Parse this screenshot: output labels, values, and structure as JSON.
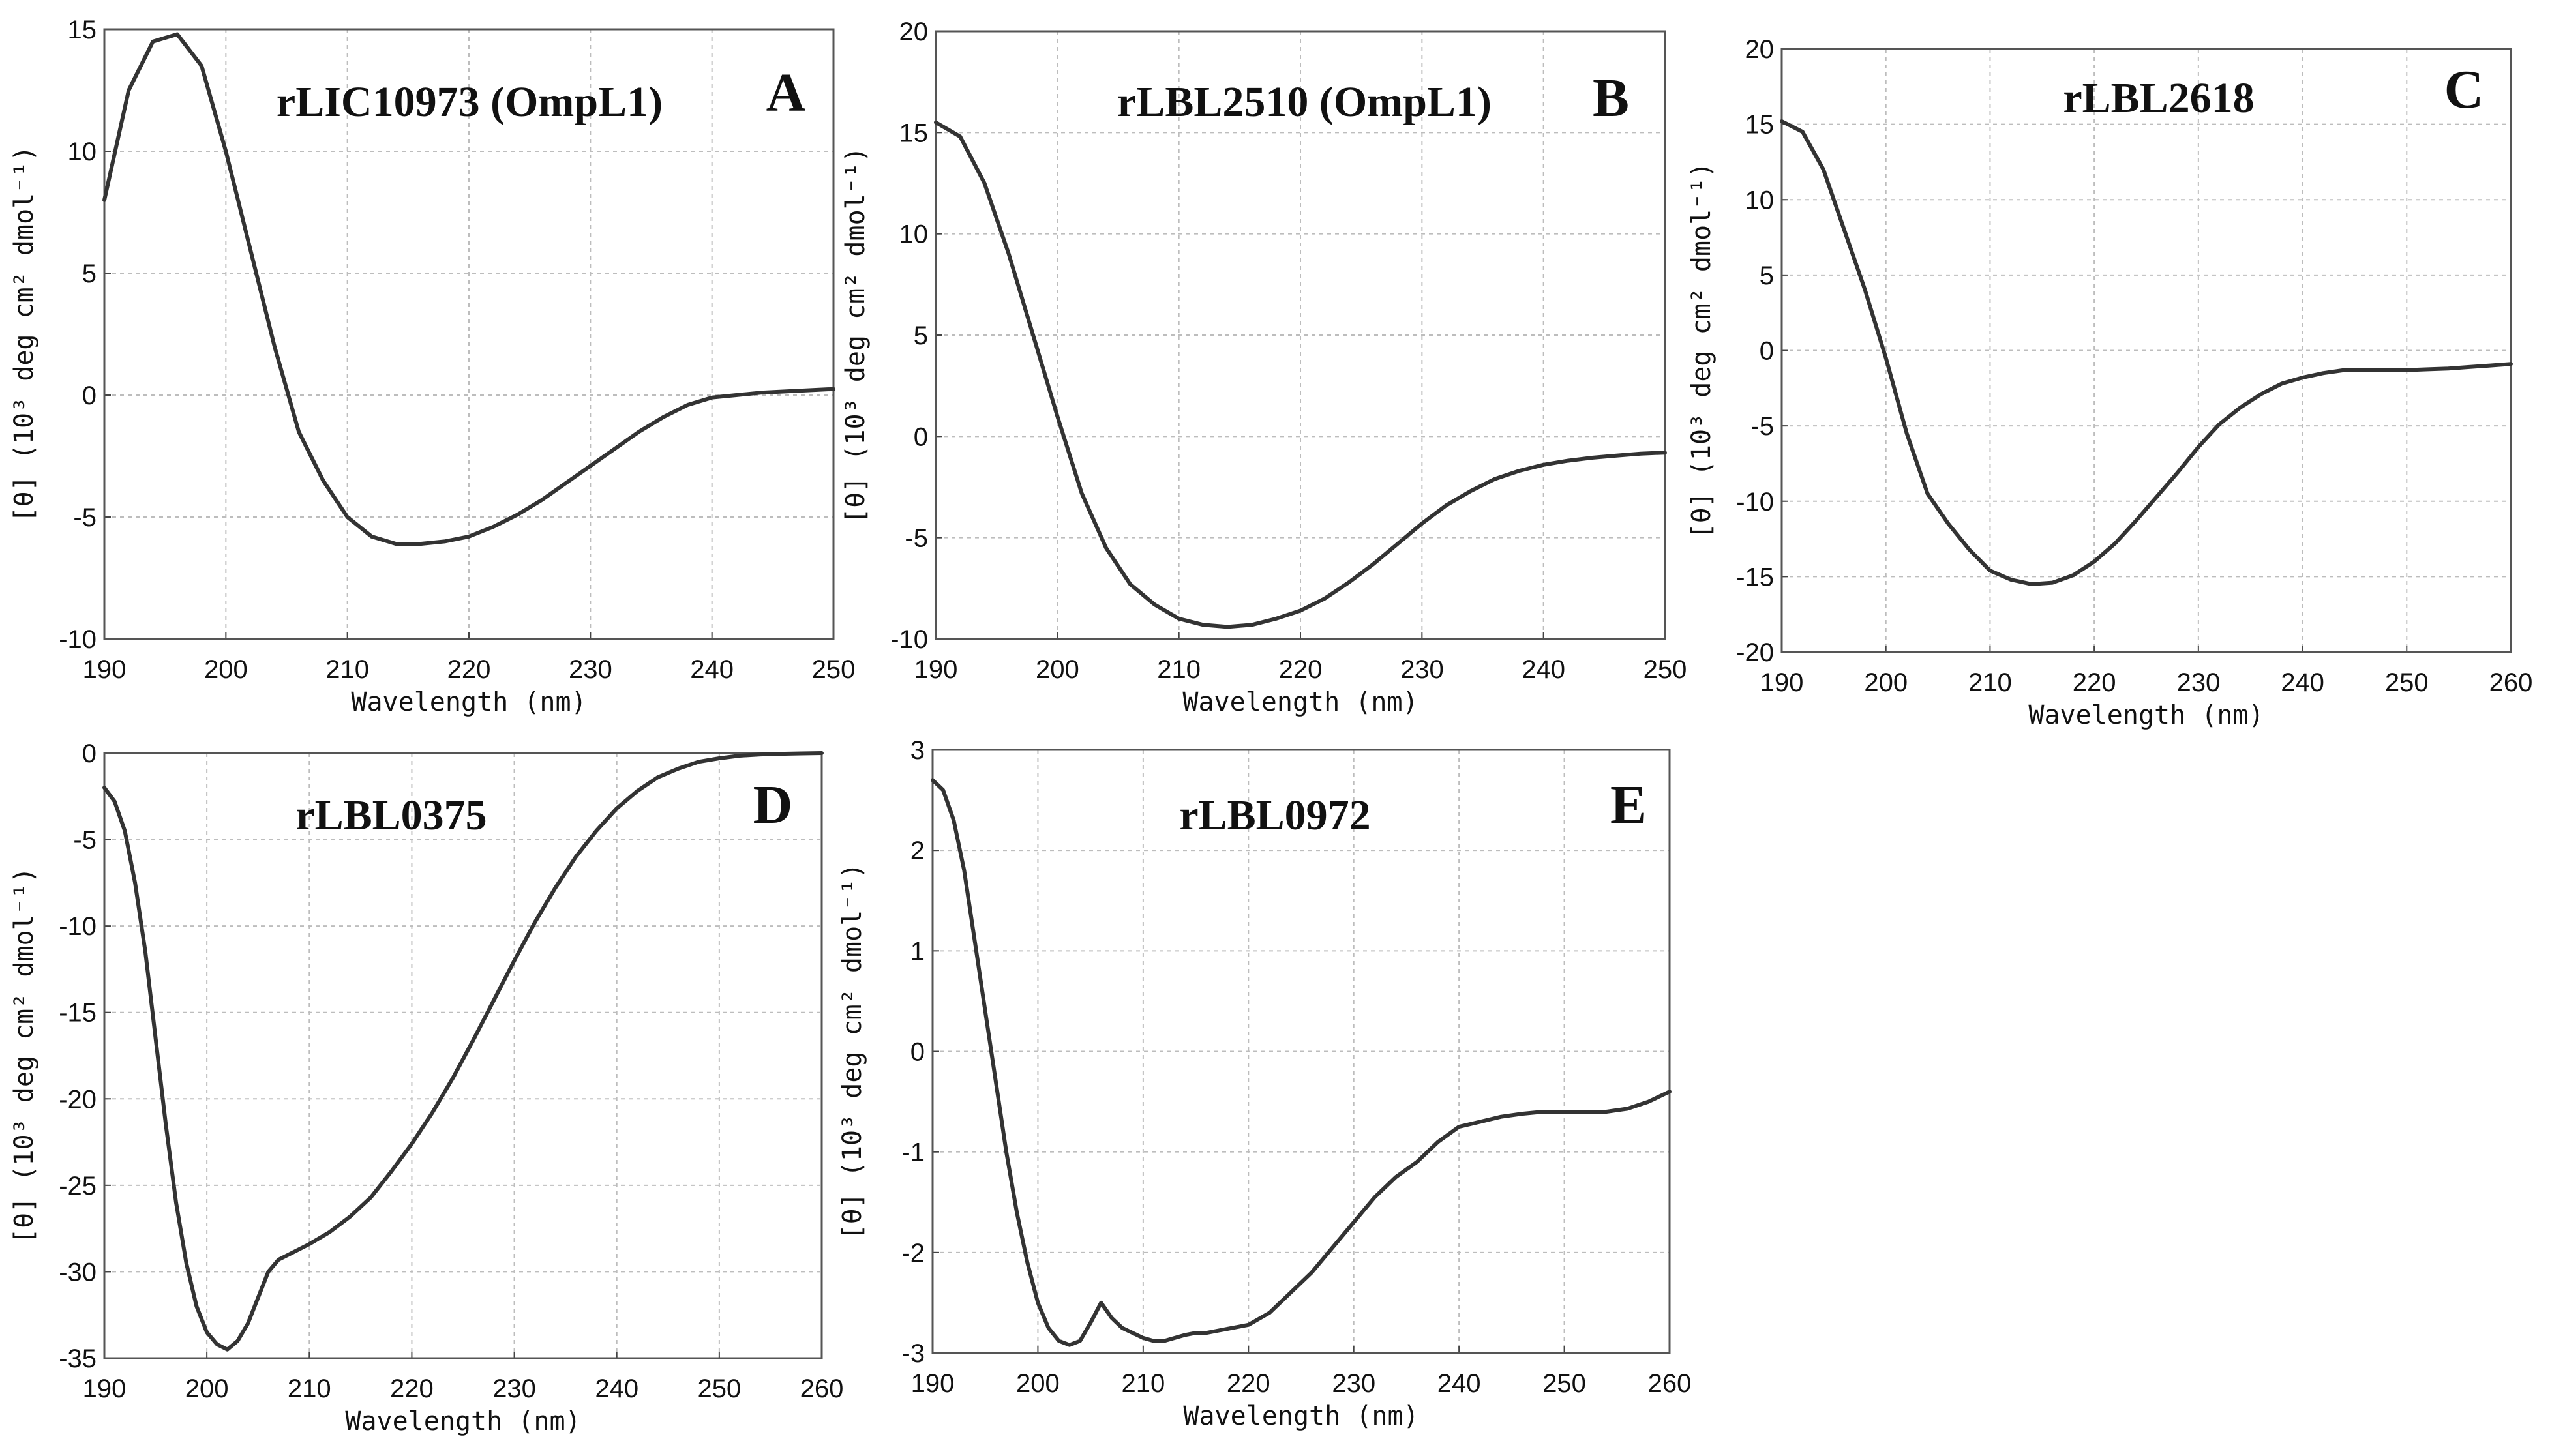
{
  "chart_data": [
    {
      "type": "line",
      "panel_letter": "A",
      "title": "rLIC10973 (OmpL1)",
      "xlabel": "Wavelength (nm)",
      "ylabel": "[θ] (10³ deg cm² dmol⁻¹)",
      "xlim": [
        190,
        250
      ],
      "ylim": [
        -10,
        15
      ],
      "xticks": [
        190,
        200,
        210,
        220,
        230,
        240,
        250
      ],
      "yticks": [
        -10,
        -5,
        0,
        5,
        10,
        15
      ],
      "grid": true,
      "series": [
        {
          "name": "rLIC10973 (OmpL1)",
          "x": [
            190,
            192,
            194,
            196,
            198,
            200,
            202,
            204,
            206,
            208,
            210,
            212,
            214,
            216,
            218,
            220,
            222,
            224,
            226,
            228,
            230,
            232,
            234,
            236,
            238,
            240,
            242,
            244,
            246,
            248,
            250
          ],
          "y": [
            8,
            12.5,
            14.5,
            14.8,
            13.5,
            10,
            6,
            2,
            -1.5,
            -3.5,
            -5,
            -5.8,
            -6.1,
            -6.1,
            -6,
            -5.8,
            -5.4,
            -4.9,
            -4.3,
            -3.6,
            -2.9,
            -2.2,
            -1.5,
            -0.9,
            -0.4,
            -0.1,
            0,
            0.1,
            0.15,
            0.2,
            0.25
          ]
        }
      ]
    },
    {
      "type": "line",
      "panel_letter": "B",
      "title": "rLBL2510 (OmpL1)",
      "xlabel": "Wavelength (nm)",
      "ylabel": "[θ] (10³ deg cm² dmol⁻¹)",
      "xlim": [
        190,
        250
      ],
      "ylim": [
        -10,
        20
      ],
      "xticks": [
        190,
        200,
        210,
        220,
        230,
        240,
        250
      ],
      "yticks": [
        -10,
        -5,
        0,
        5,
        10,
        15,
        20
      ],
      "grid": true,
      "series": [
        {
          "name": "rLBL2510 (OmpL1)",
          "x": [
            190,
            192,
            194,
            196,
            198,
            200,
            202,
            204,
            206,
            208,
            210,
            212,
            214,
            216,
            218,
            220,
            222,
            224,
            226,
            228,
            230,
            232,
            234,
            236,
            238,
            240,
            242,
            244,
            246,
            248,
            250
          ],
          "y": [
            15.5,
            14.8,
            12.5,
            9,
            5,
            1,
            -2.8,
            -5.5,
            -7.3,
            -8.3,
            -9,
            -9.3,
            -9.4,
            -9.3,
            -9,
            -8.6,
            -8,
            -7.2,
            -6.3,
            -5.3,
            -4.3,
            -3.4,
            -2.7,
            -2.1,
            -1.7,
            -1.4,
            -1.2,
            -1.05,
            -0.95,
            -0.85,
            -0.8
          ]
        }
      ]
    },
    {
      "type": "line",
      "panel_letter": "C",
      "title": "rLBL2618",
      "xlabel": "Wavelength (nm)",
      "ylabel": "[θ] (10³ deg cm² dmol⁻¹)",
      "xlim": [
        190,
        260
      ],
      "ylim": [
        -20,
        20
      ],
      "xticks": [
        190,
        200,
        210,
        220,
        230,
        240,
        250,
        260
      ],
      "yticks": [
        -20,
        -15,
        -10,
        -5,
        0,
        5,
        10,
        15,
        20
      ],
      "grid": true,
      "series": [
        {
          "name": "rLBL2618",
          "x": [
            190,
            192,
            194,
            196,
            198,
            200,
            202,
            204,
            206,
            208,
            210,
            212,
            214,
            216,
            218,
            220,
            222,
            224,
            226,
            228,
            230,
            232,
            234,
            236,
            238,
            240,
            242,
            244,
            246,
            248,
            250,
            252,
            254,
            256,
            258,
            260
          ],
          "y": [
            15.2,
            14.5,
            12,
            8,
            4,
            -0.5,
            -5.5,
            -9.5,
            -11.5,
            -13.2,
            -14.6,
            -15.2,
            -15.5,
            -15.4,
            -14.9,
            -14,
            -12.8,
            -11.3,
            -9.7,
            -8.1,
            -6.4,
            -4.9,
            -3.8,
            -2.9,
            -2.2,
            -1.8,
            -1.5,
            -1.3,
            -1.3,
            -1.3,
            -1.3,
            -1.25,
            -1.2,
            -1.1,
            -1,
            -0.9
          ]
        }
      ]
    },
    {
      "type": "line",
      "panel_letter": "D",
      "title": "rLBL0375",
      "xlabel": "Wavelength (nm)",
      "ylabel": "[θ] (10³ deg cm² dmol⁻¹)",
      "xlim": [
        190,
        260
      ],
      "ylim": [
        -35,
        0
      ],
      "xticks": [
        190,
        200,
        210,
        220,
        230,
        240,
        250,
        260
      ],
      "yticks": [
        -35,
        -30,
        -25,
        -20,
        -15,
        -10,
        -5,
        0
      ],
      "grid": true,
      "series": [
        {
          "name": "rLBL0375",
          "x": [
            190,
            191,
            192,
            193,
            194,
            195,
            196,
            197,
            198,
            199,
            200,
            201,
            202,
            203,
            204,
            205,
            206,
            207,
            208,
            210,
            212,
            214,
            216,
            218,
            220,
            222,
            224,
            226,
            228,
            230,
            232,
            234,
            236,
            238,
            240,
            242,
            244,
            246,
            248,
            250,
            252,
            254,
            256,
            258,
            260
          ],
          "y": [
            -2,
            -2.8,
            -4.5,
            -7.5,
            -11.5,
            -16.5,
            -21.5,
            -26,
            -29.5,
            -32,
            -33.5,
            -34.2,
            -34.5,
            -34,
            -33,
            -31.5,
            -30,
            -29.3,
            -29,
            -28.4,
            -27.7,
            -26.8,
            -25.7,
            -24.2,
            -22.6,
            -20.8,
            -18.8,
            -16.6,
            -14.3,
            -12,
            -9.8,
            -7.8,
            -6,
            -4.5,
            -3.2,
            -2.2,
            -1.4,
            -0.9,
            -0.5,
            -0.3,
            -0.15,
            -0.08,
            -0.04,
            -0.02,
            0
          ]
        }
      ]
    },
    {
      "type": "line",
      "panel_letter": "E",
      "title": "rLBL0972",
      "xlabel": "Wavelength (nm)",
      "ylabel": "[θ] (10³ deg cm² dmol⁻¹)",
      "xlim": [
        190,
        260
      ],
      "ylim": [
        -3,
        3
      ],
      "xticks": [
        190,
        200,
        210,
        220,
        230,
        240,
        250,
        260
      ],
      "yticks": [
        -3,
        -2,
        -1,
        0,
        1,
        2,
        3
      ],
      "grid": true,
      "series": [
        {
          "name": "rLBL0972",
          "x": [
            190,
            191,
            192,
            193,
            194,
            195,
            196,
            197,
            198,
            199,
            200,
            201,
            202,
            203,
            204,
            205,
            206,
            207,
            208,
            209,
            210,
            211,
            212,
            213,
            214,
            215,
            216,
            217,
            218,
            219,
            220,
            222,
            224,
            226,
            228,
            230,
            232,
            234,
            236,
            238,
            240,
            242,
            244,
            246,
            248,
            250,
            252,
            254,
            256,
            258,
            260
          ],
          "y": [
            2.7,
            2.6,
            2.3,
            1.8,
            1.1,
            0.4,
            -0.3,
            -1,
            -1.6,
            -2.1,
            -2.5,
            -2.75,
            -2.88,
            -2.92,
            -2.88,
            -2.7,
            -2.5,
            -2.65,
            -2.75,
            -2.8,
            -2.85,
            -2.88,
            -2.88,
            -2.85,
            -2.82,
            -2.8,
            -2.8,
            -2.78,
            -2.76,
            -2.74,
            -2.72,
            -2.6,
            -2.4,
            -2.2,
            -1.95,
            -1.7,
            -1.45,
            -1.25,
            -1.1,
            -0.9,
            -0.75,
            -0.7,
            -0.65,
            -0.62,
            -0.6,
            -0.6,
            -0.6,
            -0.6,
            -0.57,
            -0.5,
            -0.4
          ]
        }
      ]
    }
  ]
}
